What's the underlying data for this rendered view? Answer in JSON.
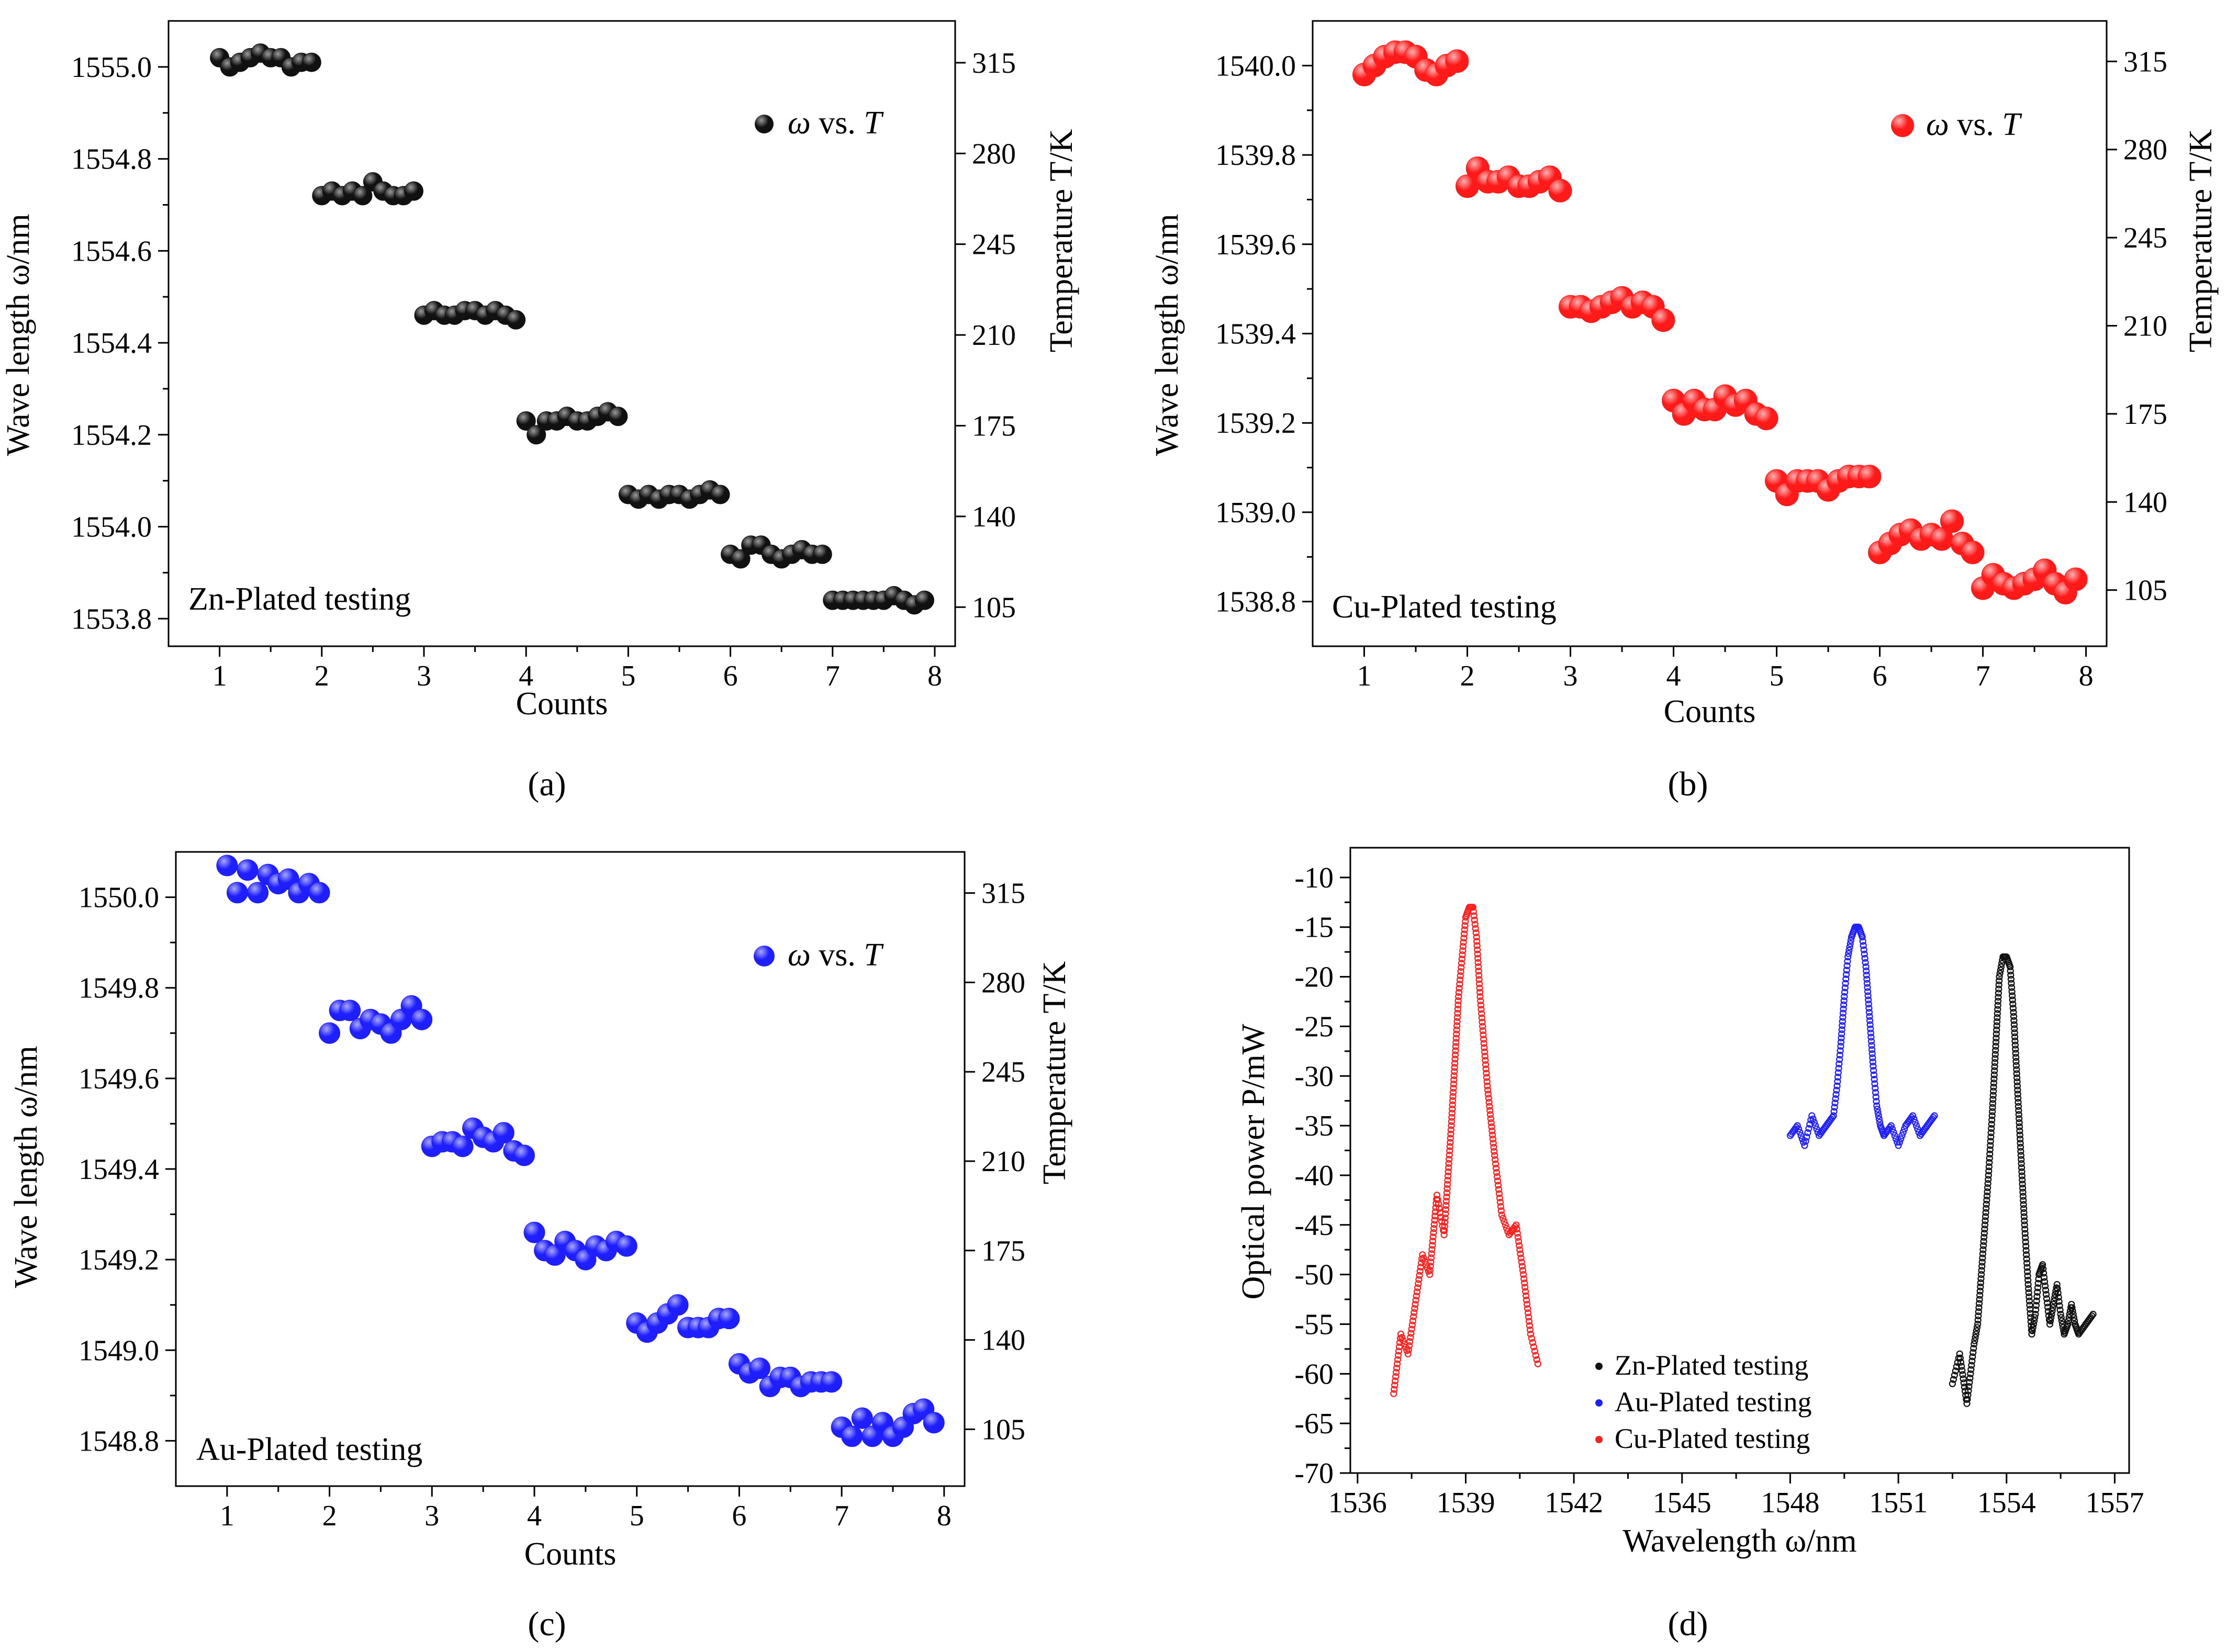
{
  "figure_labels": {
    "a": "(a)",
    "b": "(b)",
    "c": "(c)",
    "d": "(d)"
  },
  "chart_data": [
    {
      "id": "a",
      "type": "scatter",
      "xlabel": "Counts",
      "ylabel": "Wave length ω/nm",
      "y2label": "Temperature T/K",
      "xlim": [
        0.5,
        8.2
      ],
      "ylim": [
        1553.74,
        1555.1
      ],
      "x_ticks": [
        1,
        2,
        3,
        4,
        5,
        6,
        7,
        8
      ],
      "y_ticks": [
        1553.8,
        1554.0,
        1554.2,
        1554.4,
        1554.6,
        1554.8,
        1555.0
      ],
      "y2_ticks": [
        105,
        140,
        175,
        210,
        245,
        280,
        315
      ],
      "annotation": "Zn-Plated testing",
      "legend": {
        "marker": "ω",
        "text": "vs.",
        "var": "T"
      },
      "color": "#1a1a1a",
      "x": [
        1.0,
        1.1,
        1.2,
        1.3,
        1.4,
        1.5,
        1.6,
        1.7,
        1.8,
        1.9,
        2.0,
        2.1,
        2.2,
        2.3,
        2.4,
        2.5,
        2.6,
        2.7,
        2.8,
        2.9,
        3.0,
        3.1,
        3.2,
        3.3,
        3.4,
        3.5,
        3.6,
        3.7,
        3.8,
        3.9,
        4.0,
        4.1,
        4.2,
        4.3,
        4.4,
        4.5,
        4.6,
        4.7,
        4.8,
        4.9,
        5.0,
        5.1,
        5.2,
        5.3,
        5.4,
        5.5,
        5.6,
        5.7,
        5.8,
        5.9,
        6.0,
        6.1,
        6.2,
        6.3,
        6.4,
        6.5,
        6.6,
        6.7,
        6.8,
        6.9,
        7.0,
        7.1,
        7.2,
        7.3,
        7.4,
        7.5,
        7.6,
        7.7,
        7.8,
        7.9
      ],
      "y": [
        1555.02,
        1555.0,
        1555.01,
        1555.02,
        1555.03,
        1555.02,
        1555.02,
        1555.0,
        1555.01,
        1555.01,
        1554.72,
        1554.73,
        1554.72,
        1554.73,
        1554.72,
        1554.75,
        1554.73,
        1554.72,
        1554.72,
        1554.73,
        1554.46,
        1554.47,
        1554.46,
        1554.46,
        1554.47,
        1554.47,
        1554.46,
        1554.47,
        1554.46,
        1554.45,
        1554.23,
        1554.2,
        1554.23,
        1554.23,
        1554.24,
        1554.23,
        1554.23,
        1554.24,
        1554.25,
        1554.24,
        1554.07,
        1554.06,
        1554.07,
        1554.06,
        1554.07,
        1554.07,
        1554.06,
        1554.07,
        1554.08,
        1554.07,
        1553.94,
        1553.93,
        1553.96,
        1553.96,
        1553.94,
        1553.93,
        1553.94,
        1553.95,
        1553.94,
        1553.94,
        1553.84,
        1553.84,
        1553.84,
        1553.84,
        1553.84,
        1553.84,
        1553.85,
        1553.84,
        1553.83,
        1553.84
      ]
    },
    {
      "id": "b",
      "type": "scatter",
      "xlabel": "Counts",
      "ylabel": "Wave length ω/nm",
      "y2label": "Temperature T/K",
      "xlim": [
        0.5,
        8.2
      ],
      "ylim": [
        1538.7,
        1540.1
      ],
      "x_ticks": [
        1,
        2,
        3,
        4,
        5,
        6,
        7,
        8
      ],
      "y_ticks": [
        1538.8,
        1539.0,
        1539.2,
        1539.4,
        1539.6,
        1539.8,
        1540.0
      ],
      "y2_ticks": [
        105,
        140,
        175,
        210,
        245,
        280,
        315
      ],
      "annotation": "Cu-Plated testing",
      "legend": {
        "marker": "ω",
        "text": "vs.",
        "var": "T"
      },
      "color": "#ff2020",
      "x": [
        1.0,
        1.1,
        1.2,
        1.3,
        1.4,
        1.5,
        1.6,
        1.7,
        1.8,
        1.9,
        2.0,
        2.1,
        2.2,
        2.3,
        2.4,
        2.5,
        2.6,
        2.7,
        2.8,
        2.9,
        3.0,
        3.1,
        3.2,
        3.3,
        3.4,
        3.5,
        3.6,
        3.7,
        3.8,
        3.9,
        4.0,
        4.1,
        4.2,
        4.3,
        4.4,
        4.5,
        4.6,
        4.7,
        4.8,
        4.9,
        5.0,
        5.1,
        5.2,
        5.3,
        5.4,
        5.5,
        5.6,
        5.7,
        5.8,
        5.9,
        6.0,
        6.1,
        6.2,
        6.3,
        6.4,
        6.5,
        6.6,
        6.7,
        6.8,
        6.9,
        7.0,
        7.1,
        7.2,
        7.3,
        7.4,
        7.5,
        7.6,
        7.7,
        7.8,
        7.9
      ],
      "y": [
        1539.98,
        1540.0,
        1540.02,
        1540.03,
        1540.03,
        1540.02,
        1539.99,
        1539.98,
        1540.0,
        1540.01,
        1539.73,
        1539.77,
        1539.74,
        1539.74,
        1539.75,
        1539.73,
        1539.73,
        1539.74,
        1539.75,
        1539.72,
        1539.46,
        1539.46,
        1539.45,
        1539.46,
        1539.47,
        1539.48,
        1539.46,
        1539.47,
        1539.46,
        1539.43,
        1539.25,
        1539.22,
        1539.25,
        1539.23,
        1539.23,
        1539.26,
        1539.24,
        1539.25,
        1539.22,
        1539.21,
        1539.07,
        1539.04,
        1539.07,
        1539.07,
        1539.07,
        1539.05,
        1539.07,
        1539.08,
        1539.08,
        1539.08,
        1538.91,
        1538.93,
        1538.95,
        1538.96,
        1538.94,
        1538.95,
        1538.94,
        1538.98,
        1538.93,
        1538.91,
        1538.83,
        1538.86,
        1538.84,
        1538.83,
        1538.84,
        1538.85,
        1538.87,
        1538.84,
        1538.82,
        1538.85
      ]
    },
    {
      "id": "c",
      "type": "scatter",
      "xlabel": "Counts",
      "ylabel": "Wave length ω/nm",
      "y2label": "Temperature T/K",
      "xlim": [
        0.5,
        8.2
      ],
      "ylim": [
        1548.7,
        1550.1
      ],
      "x_ticks": [
        1,
        2,
        3,
        4,
        5,
        6,
        7,
        8
      ],
      "y_ticks": [
        1548.8,
        1549.0,
        1549.2,
        1549.4,
        1549.6,
        1549.8,
        1550.0
      ],
      "y2_ticks": [
        105,
        140,
        175,
        210,
        245,
        280,
        315
      ],
      "annotation": "Au-Plated testing",
      "legend": {
        "marker": "ω",
        "text": "vs.",
        "var": "T"
      },
      "color": "#2020ff",
      "x": [
        1.0,
        1.1,
        1.2,
        1.3,
        1.4,
        1.5,
        1.6,
        1.7,
        1.8,
        1.9,
        2.0,
        2.1,
        2.2,
        2.3,
        2.4,
        2.5,
        2.6,
        2.7,
        2.8,
        2.9,
        3.0,
        3.1,
        3.2,
        3.3,
        3.4,
        3.5,
        3.6,
        3.7,
        3.8,
        3.9,
        4.0,
        4.1,
        4.2,
        4.3,
        4.4,
        4.5,
        4.6,
        4.7,
        4.8,
        4.9,
        5.0,
        5.1,
        5.2,
        5.3,
        5.4,
        5.5,
        5.6,
        5.7,
        5.8,
        5.9,
        6.0,
        6.1,
        6.2,
        6.3,
        6.4,
        6.5,
        6.6,
        6.7,
        6.8,
        6.9,
        7.0,
        7.1,
        7.2,
        7.3,
        7.4,
        7.5,
        7.6,
        7.7,
        7.8,
        7.9
      ],
      "y": [
        1550.07,
        1550.01,
        1550.06,
        1550.01,
        1550.05,
        1550.03,
        1550.04,
        1550.01,
        1550.03,
        1550.01,
        1549.7,
        1549.75,
        1549.75,
        1549.71,
        1549.73,
        1549.72,
        1549.7,
        1549.73,
        1549.76,
        1549.73,
        1549.45,
        1549.46,
        1549.46,
        1549.45,
        1549.49,
        1549.47,
        1549.46,
        1549.48,
        1549.44,
        1549.43,
        1549.26,
        1549.22,
        1549.21,
        1549.24,
        1549.22,
        1549.2,
        1549.23,
        1549.22,
        1549.24,
        1549.23,
        1549.06,
        1549.04,
        1549.06,
        1549.08,
        1549.1,
        1549.05,
        1549.05,
        1549.05,
        1549.07,
        1549.07,
        1548.97,
        1548.95,
        1548.96,
        1548.92,
        1548.94,
        1548.94,
        1548.92,
        1548.93,
        1548.93,
        1548.93,
        1548.83,
        1548.81,
        1548.85,
        1548.81,
        1548.84,
        1548.81,
        1548.83,
        1548.86,
        1548.87,
        1548.84
      ]
    },
    {
      "id": "d",
      "type": "scatter",
      "xlabel": "Wavelength ω/nm",
      "ylabel": "Optical power P/mW",
      "xlim": [
        1535.8,
        1557.4
      ],
      "ylim": [
        -70,
        -7
      ],
      "x_ticks": [
        1536,
        1539,
        1542,
        1545,
        1548,
        1551,
        1554,
        1557
      ],
      "y_ticks": [
        -70,
        -65,
        -60,
        -55,
        -50,
        -45,
        -40,
        -35,
        -30,
        -25,
        -20,
        -15,
        -10
      ],
      "legend": [
        "Zn-Plated testing",
        "Au-Plated testing",
        "Cu-Plated testing"
      ],
      "series": [
        {
          "name": "Zn-Plated testing",
          "color": "#111111",
          "x": [
            1552.5,
            1552.7,
            1552.9,
            1553.0,
            1553.1,
            1553.2,
            1553.3,
            1553.4,
            1553.5,
            1553.6,
            1553.7,
            1553.8,
            1553.9,
            1554.0,
            1554.1,
            1554.2,
            1554.3,
            1554.4,
            1554.5,
            1554.6,
            1554.7,
            1554.8,
            1554.9,
            1555.0,
            1555.1,
            1555.2,
            1555.3,
            1555.4,
            1555.5,
            1555.6,
            1555.7,
            1555.8,
            1555.9,
            1556.0,
            1556.2,
            1556.4
          ],
          "y": [
            -61,
            -58,
            -63,
            -60,
            -57,
            -55,
            -50,
            -45,
            -40,
            -34,
            -27,
            -20,
            -18,
            -18,
            -19,
            -24,
            -31,
            -38,
            -45,
            -51,
            -56,
            -54,
            -50,
            -49,
            -52,
            -55,
            -53,
            -51,
            -54,
            -56,
            -55,
            -53,
            -55,
            -56,
            -55,
            -54
          ]
        },
        {
          "name": "Au-Plated testing",
          "color": "#2020ff",
          "x": [
            1548.0,
            1548.2,
            1548.4,
            1548.6,
            1548.8,
            1549.0,
            1549.2,
            1549.3,
            1549.4,
            1549.5,
            1549.6,
            1549.7,
            1549.8,
            1549.9,
            1550.0,
            1550.1,
            1550.2,
            1550.3,
            1550.4,
            1550.5,
            1550.6,
            1550.8,
            1551.0,
            1551.2,
            1551.4,
            1551.6,
            1551.8,
            1552.0
          ],
          "y": [
            -36,
            -35,
            -37,
            -34,
            -36,
            -35,
            -34,
            -31,
            -27,
            -22,
            -18,
            -16,
            -15,
            -15,
            -16,
            -19,
            -24,
            -29,
            -33,
            -35,
            -36,
            -35,
            -37,
            -35,
            -34,
            -36,
            -35,
            -34
          ]
        },
        {
          "name": "Cu-Plated testing",
          "color": "#ff2020",
          "x": [
            1537.0,
            1537.2,
            1537.4,
            1537.6,
            1537.8,
            1538.0,
            1538.2,
            1538.4,
            1538.6,
            1538.8,
            1539.0,
            1539.1,
            1539.2,
            1539.3,
            1539.4,
            1539.6,
            1539.8,
            1540.0,
            1540.2,
            1540.4,
            1540.6,
            1540.8,
            1541.0
          ],
          "y": [
            -62,
            -56,
            -58,
            -53,
            -48,
            -50,
            -42,
            -46,
            -35,
            -22,
            -14,
            -13,
            -13,
            -16,
            -22,
            -31,
            -38,
            -44,
            -46,
            -45,
            -50,
            -56,
            -59
          ]
        }
      ]
    }
  ]
}
